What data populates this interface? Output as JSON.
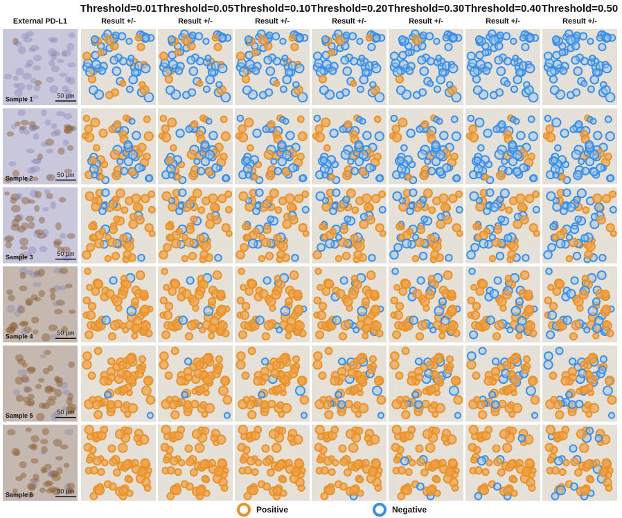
{
  "first_column": {
    "title": "External PD-L1"
  },
  "columns": [
    {
      "title": "Threshold=0.01",
      "subtitle": "Result +/-"
    },
    {
      "title": "Threshold=0.05",
      "subtitle": "Result +/-"
    },
    {
      "title": "Threshold=0.10",
      "subtitle": "Result +/-"
    },
    {
      "title": "Threshold=0.20",
      "subtitle": "Result +/-"
    },
    {
      "title": "Threshold=0.30",
      "subtitle": "Result +/-"
    },
    {
      "title": "Threshold=0.40",
      "subtitle": "Result +/-"
    },
    {
      "title": "Threshold=0.50",
      "subtitle": "Result +/-"
    }
  ],
  "rows": [
    {
      "label": "Sample 1",
      "scale": "50 µm"
    },
    {
      "label": "Sample 2",
      "scale": "50 µm"
    },
    {
      "label": "Sample 3",
      "scale": "50 µm"
    },
    {
      "label": "Sample 4",
      "scale": "50 µm"
    },
    {
      "label": "Sample 5",
      "scale": "50 µm"
    },
    {
      "label": "Sample 6",
      "scale": "50 µm"
    }
  ],
  "legend": [
    {
      "label": "Positive"
    },
    {
      "label": "Negative"
    }
  ]
}
